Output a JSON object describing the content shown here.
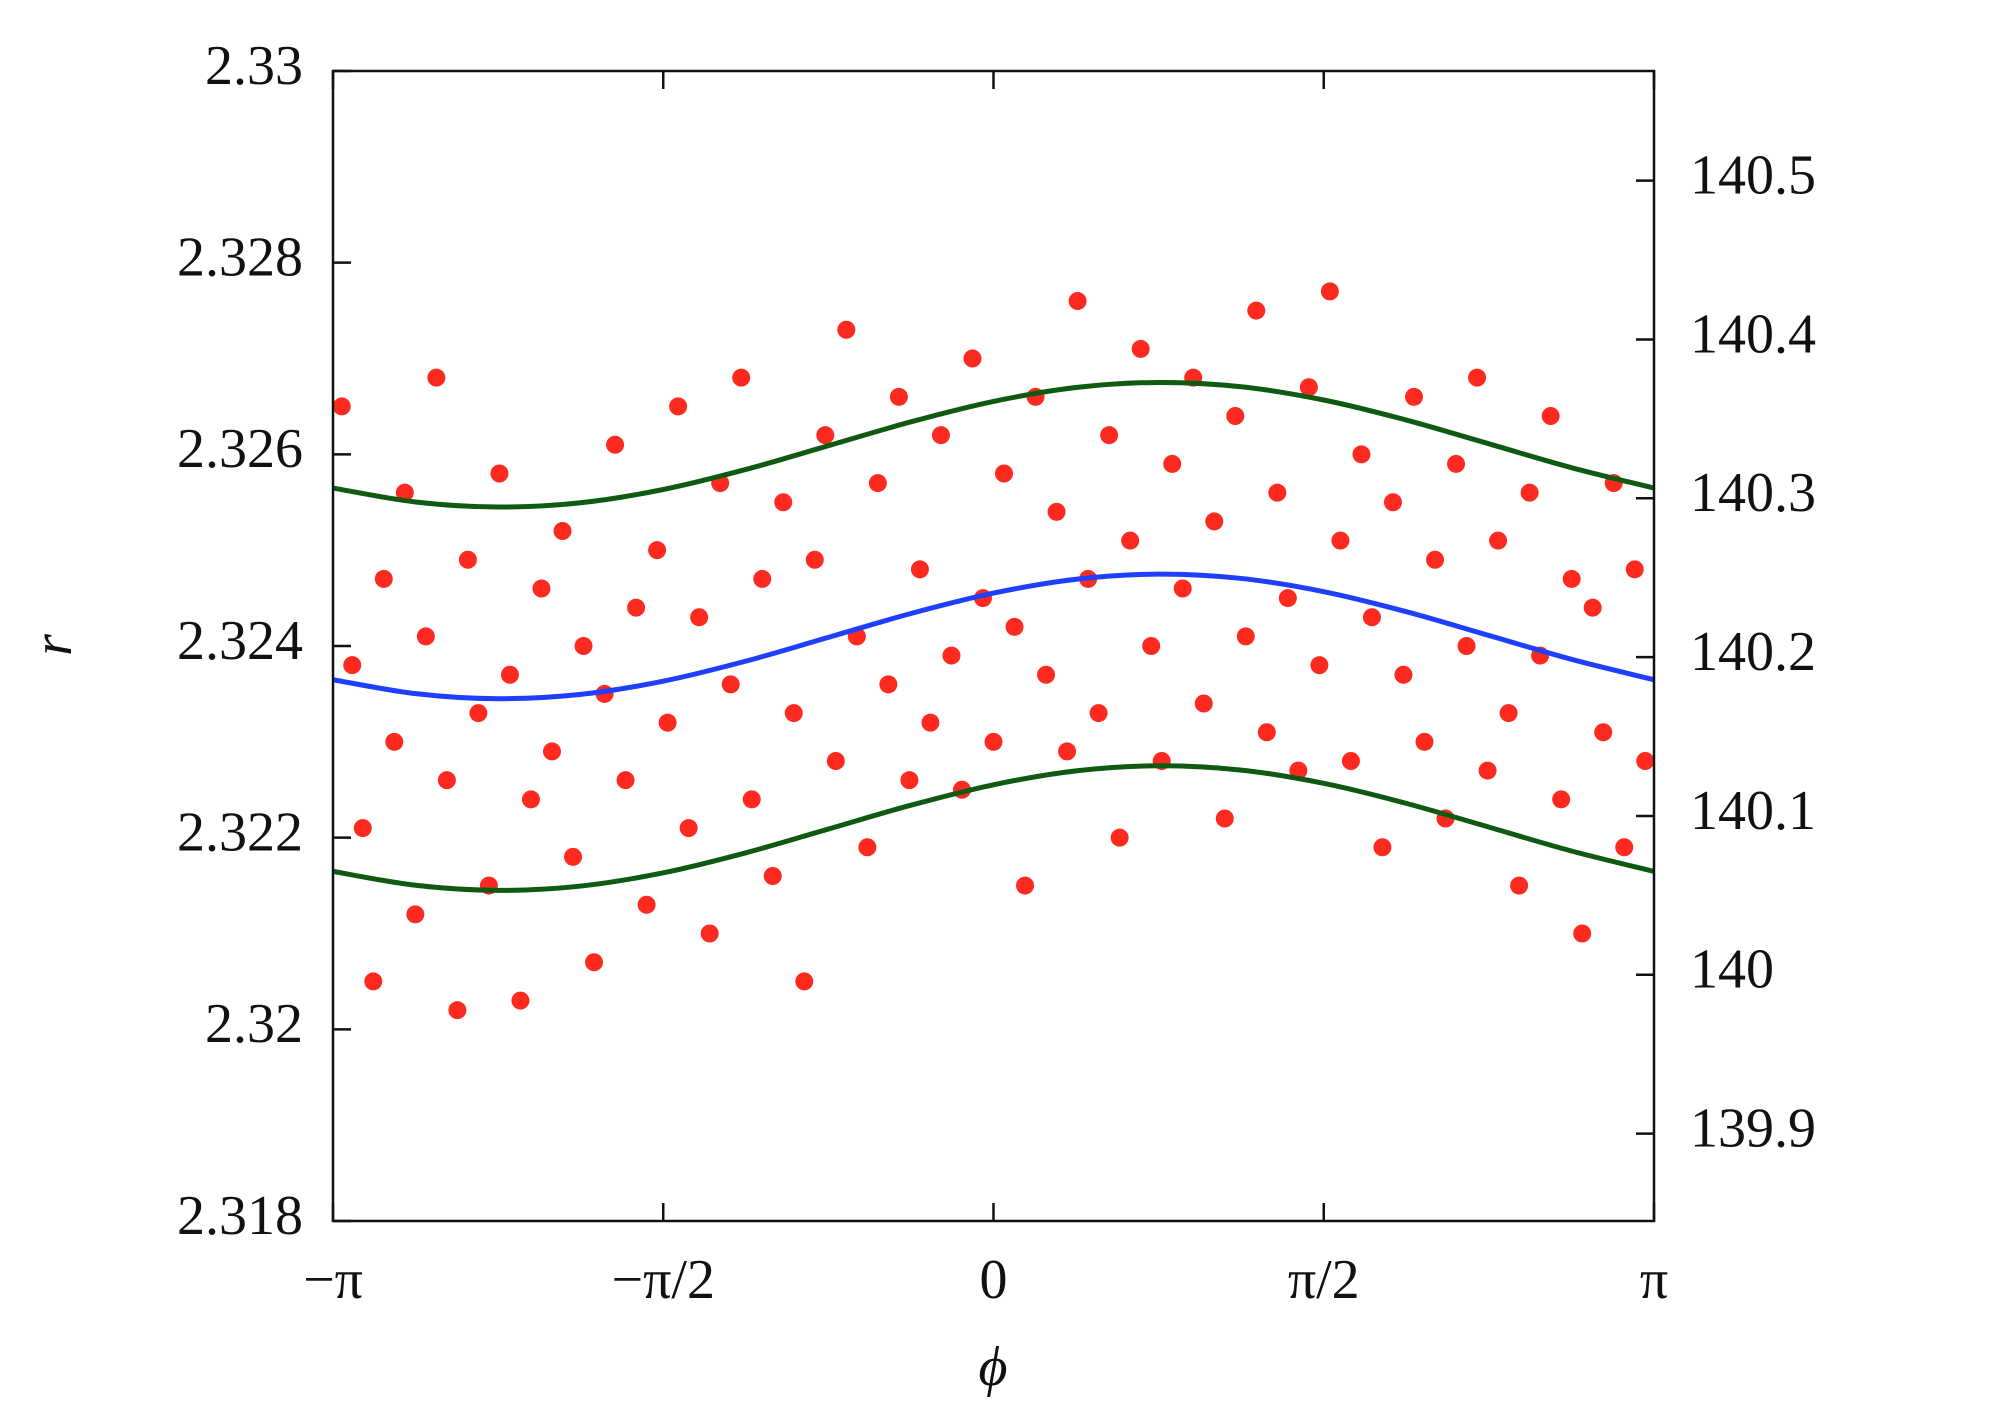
{
  "chart_data": {
    "type": "scatter",
    "x_label": "ϕ",
    "y_label": "r",
    "xlim": [
      -3.14159,
      3.14159
    ],
    "xticks": [
      {
        "value": -3.14159,
        "label": "−π"
      },
      {
        "value": -1.5708,
        "label": "−π/2"
      },
      0,
      {
        "value": 1.5708,
        "label": "π/2"
      },
      {
        "value": 3.14159,
        "label": "π"
      }
    ],
    "ylim": [
      2.318,
      2.33
    ],
    "yticks": [
      2.318,
      2.32,
      2.322,
      2.324,
      2.326,
      2.328,
      2.33
    ],
    "y2lim": [
      139.845,
      140.569
    ],
    "y2ticks": [
      139.9,
      140,
      140.1,
      140.2,
      140.3,
      140.4,
      140.5
    ],
    "grid": false,
    "series": [
      {
        "type": "scatter",
        "color": "#ff2a1f",
        "x": [
          -3.1,
          -3.05,
          -3.0,
          -2.95,
          -2.9,
          -2.85,
          -2.8,
          -2.75,
          -2.7,
          -2.65,
          -2.6,
          -2.55,
          -2.5,
          -2.45,
          -2.4,
          -2.35,
          -2.3,
          -2.25,
          -2.2,
          -2.15,
          -2.1,
          -2.05,
          -2.0,
          -1.95,
          -1.9,
          -1.85,
          -1.8,
          -1.75,
          -1.7,
          -1.65,
          -1.6,
          -1.55,
          -1.5,
          -1.45,
          -1.4,
          -1.35,
          -1.3,
          -1.25,
          -1.2,
          -1.15,
          -1.1,
          -1.05,
          -1.0,
          -0.95,
          -0.9,
          -0.85,
          -0.8,
          -0.75,
          -0.7,
          -0.65,
          -0.6,
          -0.55,
          -0.5,
          -0.45,
          -0.4,
          -0.35,
          -0.3,
          -0.25,
          -0.2,
          -0.15,
          -0.1,
          -0.05,
          0.0,
          0.05,
          0.1,
          0.15,
          0.2,
          0.25,
          0.3,
          0.35,
          0.4,
          0.45,
          0.5,
          0.55,
          0.6,
          0.65,
          0.7,
          0.75,
          0.8,
          0.85,
          0.9,
          0.95,
          1.0,
          1.05,
          1.1,
          1.15,
          1.2,
          1.25,
          1.3,
          1.35,
          1.4,
          1.45,
          1.5,
          1.55,
          1.6,
          1.65,
          1.7,
          1.75,
          1.8,
          1.85,
          1.9,
          1.95,
          2.0,
          2.05,
          2.1,
          2.15,
          2.2,
          2.25,
          2.3,
          2.35,
          2.4,
          2.45,
          2.5,
          2.55,
          2.6,
          2.65,
          2.7,
          2.75,
          2.8,
          2.85,
          2.9,
          2.95,
          3.0,
          3.05,
          3.1
        ],
        "values": [
          2.3265,
          2.3238,
          2.3221,
          2.3205,
          2.3247,
          2.323,
          2.3256,
          2.3212,
          2.3241,
          2.3268,
          2.3226,
          2.3202,
          2.3249,
          2.3233,
          2.3215,
          2.3258,
          2.3237,
          2.3203,
          2.3224,
          2.3246,
          2.3229,
          2.3252,
          2.3218,
          2.324,
          2.3207,
          2.3235,
          2.3261,
          2.3226,
          2.3244,
          2.3213,
          2.325,
          2.3232,
          2.3265,
          2.3221,
          2.3243,
          2.321,
          2.3257,
          2.3236,
          2.3268,
          2.3224,
          2.3247,
          2.3216,
          2.3255,
          2.3233,
          2.3205,
          2.3249,
          2.3262,
          2.3228,
          2.3273,
          2.3241,
          2.3219,
          2.3257,
          2.3236,
          2.3266,
          2.3226,
          2.3248,
          2.3232,
          2.3262,
          2.3239,
          2.3225,
          2.327,
          2.3245,
          2.323,
          2.3258,
          2.3242,
          2.3215,
          2.3266,
          2.3237,
          2.3254,
          2.3229,
          2.3276,
          2.3247,
          2.3233,
          2.3262,
          2.322,
          2.3251,
          2.3271,
          2.324,
          2.3228,
          2.3259,
          2.3246,
          2.3268,
          2.3234,
          2.3253,
          2.3222,
          2.3264,
          2.3241,
          2.3275,
          2.3231,
          2.3256,
          2.3245,
          2.3227,
          2.3267,
          2.3238,
          2.3277,
          2.3251,
          2.3228,
          2.326,
          2.3243,
          2.3219,
          2.3255,
          2.3237,
          2.3266,
          2.323,
          2.3249,
          2.3222,
          2.3259,
          2.324,
          2.3268,
          2.3227,
          2.3251,
          2.3233,
          2.3215,
          2.3256,
          2.3239,
          2.3264,
          2.3224,
          2.3247,
          2.321,
          2.3244,
          2.3231,
          2.3257,
          2.3219,
          2.3248,
          2.3228
        ]
      },
      {
        "type": "line",
        "color": "#1f3fff",
        "x": [
          -3.1416,
          -2.7489,
          -2.3562,
          -1.9635,
          -1.5708,
          -1.1781,
          -0.7854,
          -0.3927,
          0,
          0.3927,
          0.7854,
          1.1781,
          1.5708,
          1.9635,
          2.3562,
          2.7489,
          3.1416
        ],
        "values": [
          2.323648,
          2.323503,
          2.32345,
          2.323495,
          2.323633,
          2.323842,
          2.32409,
          2.324339,
          2.324552,
          2.324697,
          2.32475,
          2.324705,
          2.324567,
          2.324358,
          2.32411,
          2.323861,
          2.323648
        ]
      },
      {
        "type": "line",
        "color": "#0e5a12",
        "x": [
          -3.1416,
          -2.7489,
          -2.3562,
          -1.9635,
          -1.5708,
          -1.1781,
          -0.7854,
          -0.3927,
          0,
          0.3927,
          0.7854,
          1.1781,
          1.5708,
          1.9635,
          2.3562,
          2.7489,
          3.1416
        ],
        "values": [
          2.325648,
          2.325503,
          2.32545,
          2.325495,
          2.325633,
          2.325842,
          2.32609,
          2.326339,
          2.326552,
          2.326697,
          2.32675,
          2.326705,
          2.326567,
          2.326358,
          2.32611,
          2.325861,
          2.325648
        ]
      },
      {
        "type": "line",
        "color": "#0e5a12",
        "x": [
          -3.1416,
          -2.7489,
          -2.3562,
          -1.9635,
          -1.5708,
          -1.1781,
          -0.7854,
          -0.3927,
          0,
          0.3927,
          0.7854,
          1.1781,
          1.5708,
          1.9635,
          2.3562,
          2.7489,
          3.1416
        ],
        "values": [
          2.321648,
          2.321503,
          2.32145,
          2.321495,
          2.321633,
          2.321842,
          2.32209,
          2.322339,
          2.322552,
          2.322697,
          2.32275,
          2.322705,
          2.322567,
          2.322358,
          2.32211,
          2.321861,
          2.321648
        ]
      }
    ]
  }
}
